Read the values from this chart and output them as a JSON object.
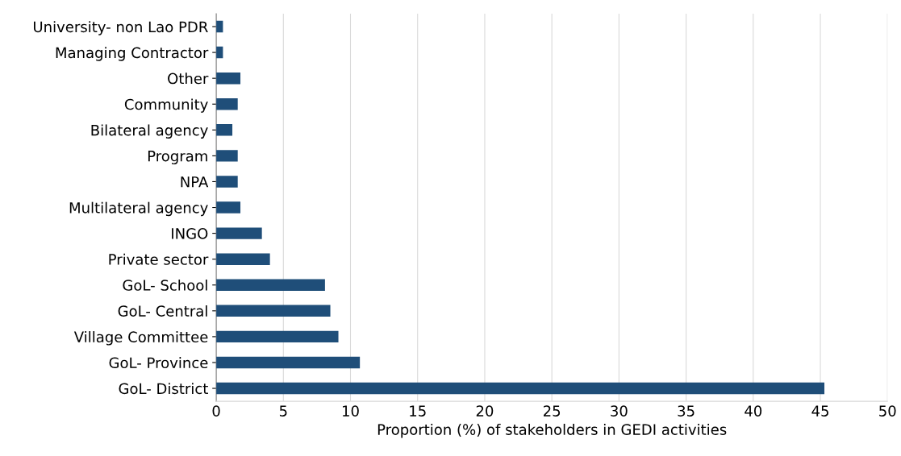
{
  "chart_data": {
    "type": "bar",
    "orientation": "horizontal",
    "xlabel": "Proportion (%) of stakeholders in GEDI activities",
    "categories": [
      "University- non Lao PDR",
      "Managing Contractor",
      "Other",
      "Community",
      "Bilateral agency",
      "Program",
      "NPA",
      "Multilateral agency",
      "INGO",
      "Private sector",
      "GoL- School",
      "GoL- Central",
      "Village Committee",
      "GoL- Province",
      "GoL- District"
    ],
    "values": [
      0.5,
      0.5,
      1.8,
      1.6,
      1.2,
      1.6,
      1.6,
      1.8,
      3.4,
      4.0,
      8.1,
      8.5,
      9.1,
      10.7,
      45.3
    ],
    "color": "#1f4e79",
    "xlim": [
      0,
      50
    ],
    "xticks": [
      0,
      5,
      10,
      15,
      20,
      25,
      30,
      35,
      40,
      45,
      50
    ],
    "grid": "x"
  }
}
